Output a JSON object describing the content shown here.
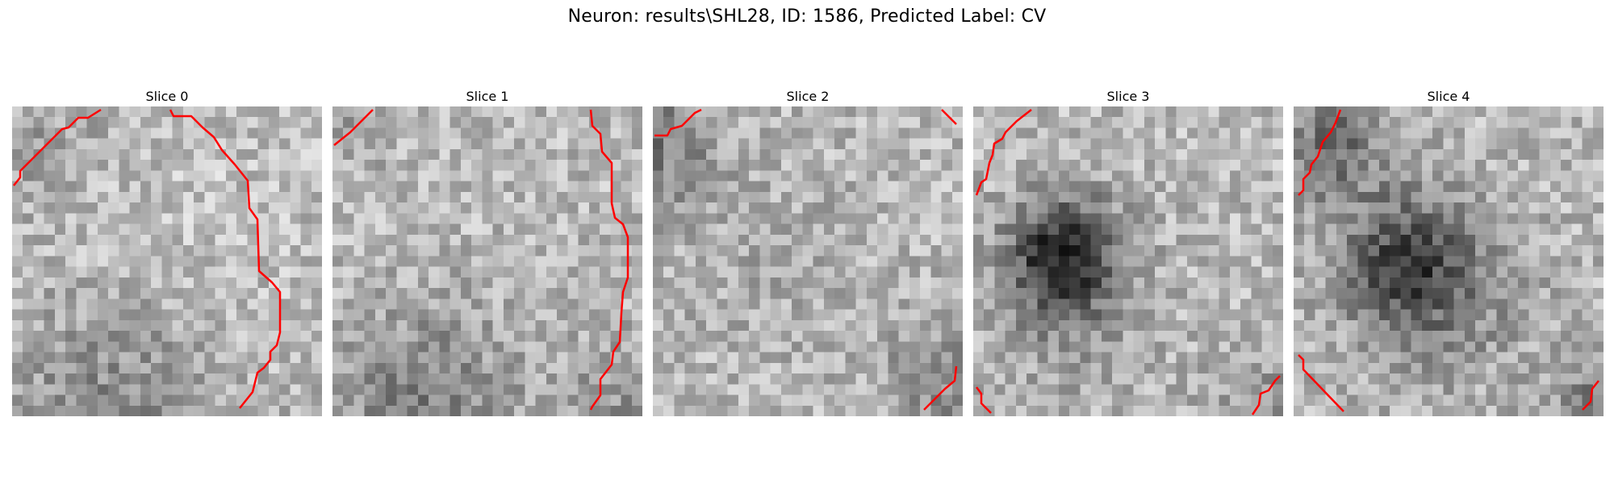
{
  "figure": {
    "title": "Neuron: results\\SHL28, ID: 1586, Predicted Label: CV"
  },
  "panels": [
    {
      "label": "Slice 0"
    },
    {
      "label": "Slice 1"
    },
    {
      "label": "Slice 2"
    },
    {
      "label": "Slice 3"
    },
    {
      "label": "Slice 4"
    }
  ],
  "colors": {
    "contour": "#ff0000",
    "colormap": "gray"
  }
}
